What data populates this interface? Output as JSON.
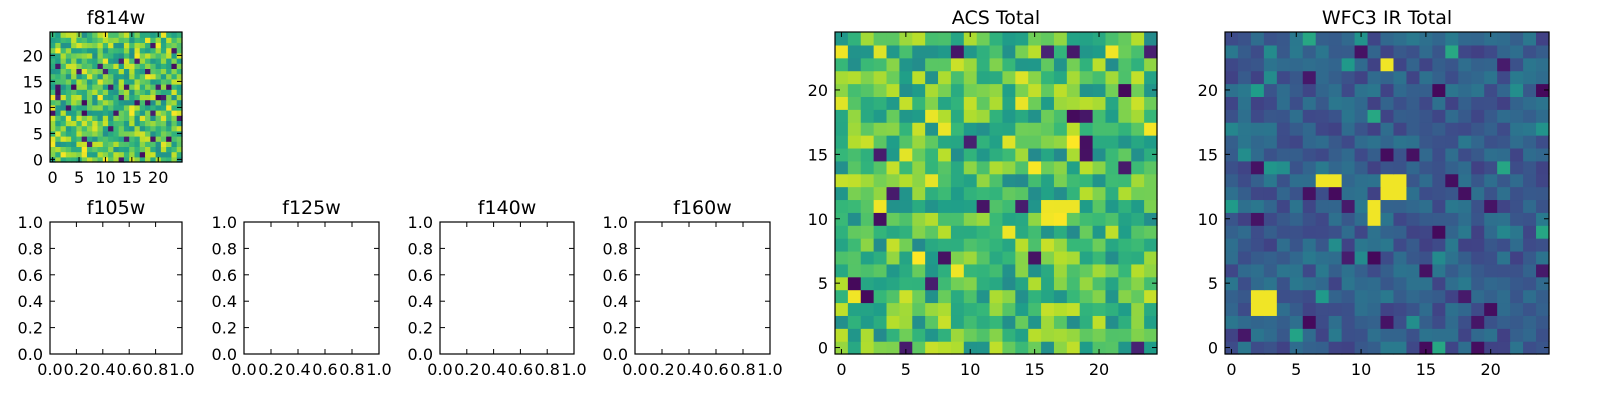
{
  "chart_data": [
    {
      "type": "heatmap",
      "id": "f814w",
      "title": "f814w",
      "grid_size": 25,
      "xticks": [
        "0",
        "5",
        "10",
        "15",
        "20"
      ],
      "yticks": [
        "0",
        "5",
        "10",
        "15",
        "20"
      ],
      "colormap": "viridis",
      "value_description": "25x25 pixel image; values are noise-like, mostly mid-to-high (green/yellow) with sparse dark (low) pixels",
      "seed": 814,
      "mean_level": 0.72
    },
    {
      "type": "scatter",
      "id": "f105w",
      "title": "f105w",
      "xlim": [
        0.0,
        1.0
      ],
      "ylim": [
        0.0,
        1.0
      ],
      "xticks": [
        "0.0",
        "0.2",
        "0.4",
        "0.6",
        "0.8",
        "1.0"
      ],
      "yticks": [
        "0.0",
        "0.2",
        "0.4",
        "0.6",
        "0.8",
        "1.0"
      ],
      "points": []
    },
    {
      "type": "scatter",
      "id": "f125w",
      "title": "f125w",
      "xlim": [
        0.0,
        1.0
      ],
      "ylim": [
        0.0,
        1.0
      ],
      "xticks": [
        "0.0",
        "0.2",
        "0.4",
        "0.6",
        "0.8",
        "1.0"
      ],
      "yticks": [
        "0.0",
        "0.2",
        "0.4",
        "0.6",
        "0.8",
        "1.0"
      ],
      "points": []
    },
    {
      "type": "scatter",
      "id": "f140w",
      "title": "f140w",
      "xlim": [
        0.0,
        1.0
      ],
      "ylim": [
        0.0,
        1.0
      ],
      "xticks": [
        "0.0",
        "0.2",
        "0.4",
        "0.6",
        "0.8",
        "1.0"
      ],
      "yticks": [
        "0.0",
        "0.2",
        "0.4",
        "0.6",
        "0.8",
        "1.0"
      ],
      "points": []
    },
    {
      "type": "scatter",
      "id": "f160w",
      "title": "f160w",
      "xlim": [
        0.0,
        1.0
      ],
      "ylim": [
        0.0,
        1.0
      ],
      "xticks": [
        "0.0",
        "0.2",
        "0.4",
        "0.6",
        "0.8",
        "1.0"
      ],
      "yticks": [
        "0.0",
        "0.2",
        "0.4",
        "0.6",
        "0.8",
        "1.0"
      ],
      "points": []
    },
    {
      "type": "heatmap",
      "id": "acs-total",
      "title": "ACS Total",
      "grid_size": 25,
      "xticks": [
        "0",
        "5",
        "10",
        "15",
        "20"
      ],
      "yticks": [
        "0",
        "5",
        "10",
        "15",
        "20"
      ],
      "colormap": "viridis",
      "seed": 2718,
      "mean_level": 0.7
    },
    {
      "type": "heatmap",
      "id": "wfc3-ir-total",
      "title": "WFC3 IR Total",
      "grid_size": 25,
      "xticks": [
        "0",
        "5",
        "10",
        "15",
        "20"
      ],
      "yticks": [
        "0",
        "5",
        "10",
        "15",
        "20"
      ],
      "colormap": "viridis",
      "seed": 3141,
      "mean_level": 0.3,
      "bright_pixels": [
        [
          12,
          12
        ],
        [
          13,
          12
        ],
        [
          12,
          13
        ],
        [
          13,
          13
        ],
        [
          11,
          11
        ],
        [
          11,
          10
        ],
        [
          2,
          3
        ],
        [
          3,
          3
        ],
        [
          2,
          4
        ],
        [
          3,
          4
        ],
        [
          12,
          22
        ],
        [
          7,
          13
        ],
        [
          8,
          13
        ]
      ]
    }
  ]
}
